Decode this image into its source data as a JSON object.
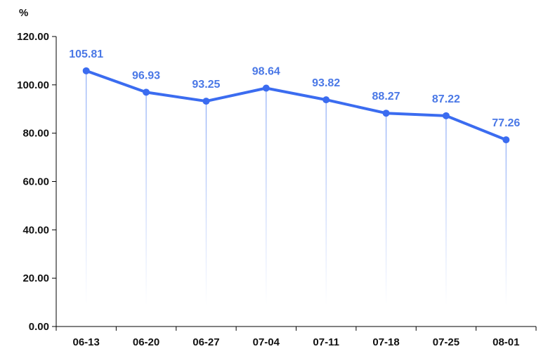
{
  "chart_data": {
    "type": "line",
    "y_unit": "%",
    "categories": [
      "06-13",
      "06-20",
      "06-27",
      "07-04",
      "07-11",
      "07-18",
      "07-25",
      "08-01"
    ],
    "series": [
      {
        "values": [
          105.81,
          96.93,
          93.25,
          98.64,
          93.82,
          88.27,
          87.22,
          77.26
        ]
      }
    ],
    "data_labels": [
      "105.81",
      "96.93",
      "93.25",
      "98.64",
      "93.82",
      "88.27",
      "87.22",
      "77.26"
    ],
    "y_ticks": [
      "0.00",
      "20.00",
      "40.00",
      "60.00",
      "80.00",
      "100.00",
      "120.00"
    ],
    "ylim": [
      0,
      120
    ],
    "grid": false,
    "legend": "none",
    "colors": {
      "line": "#3b6cf0",
      "label": "#4a78e6",
      "axis": "#000000",
      "drop_line": "#7da0f5"
    }
  }
}
